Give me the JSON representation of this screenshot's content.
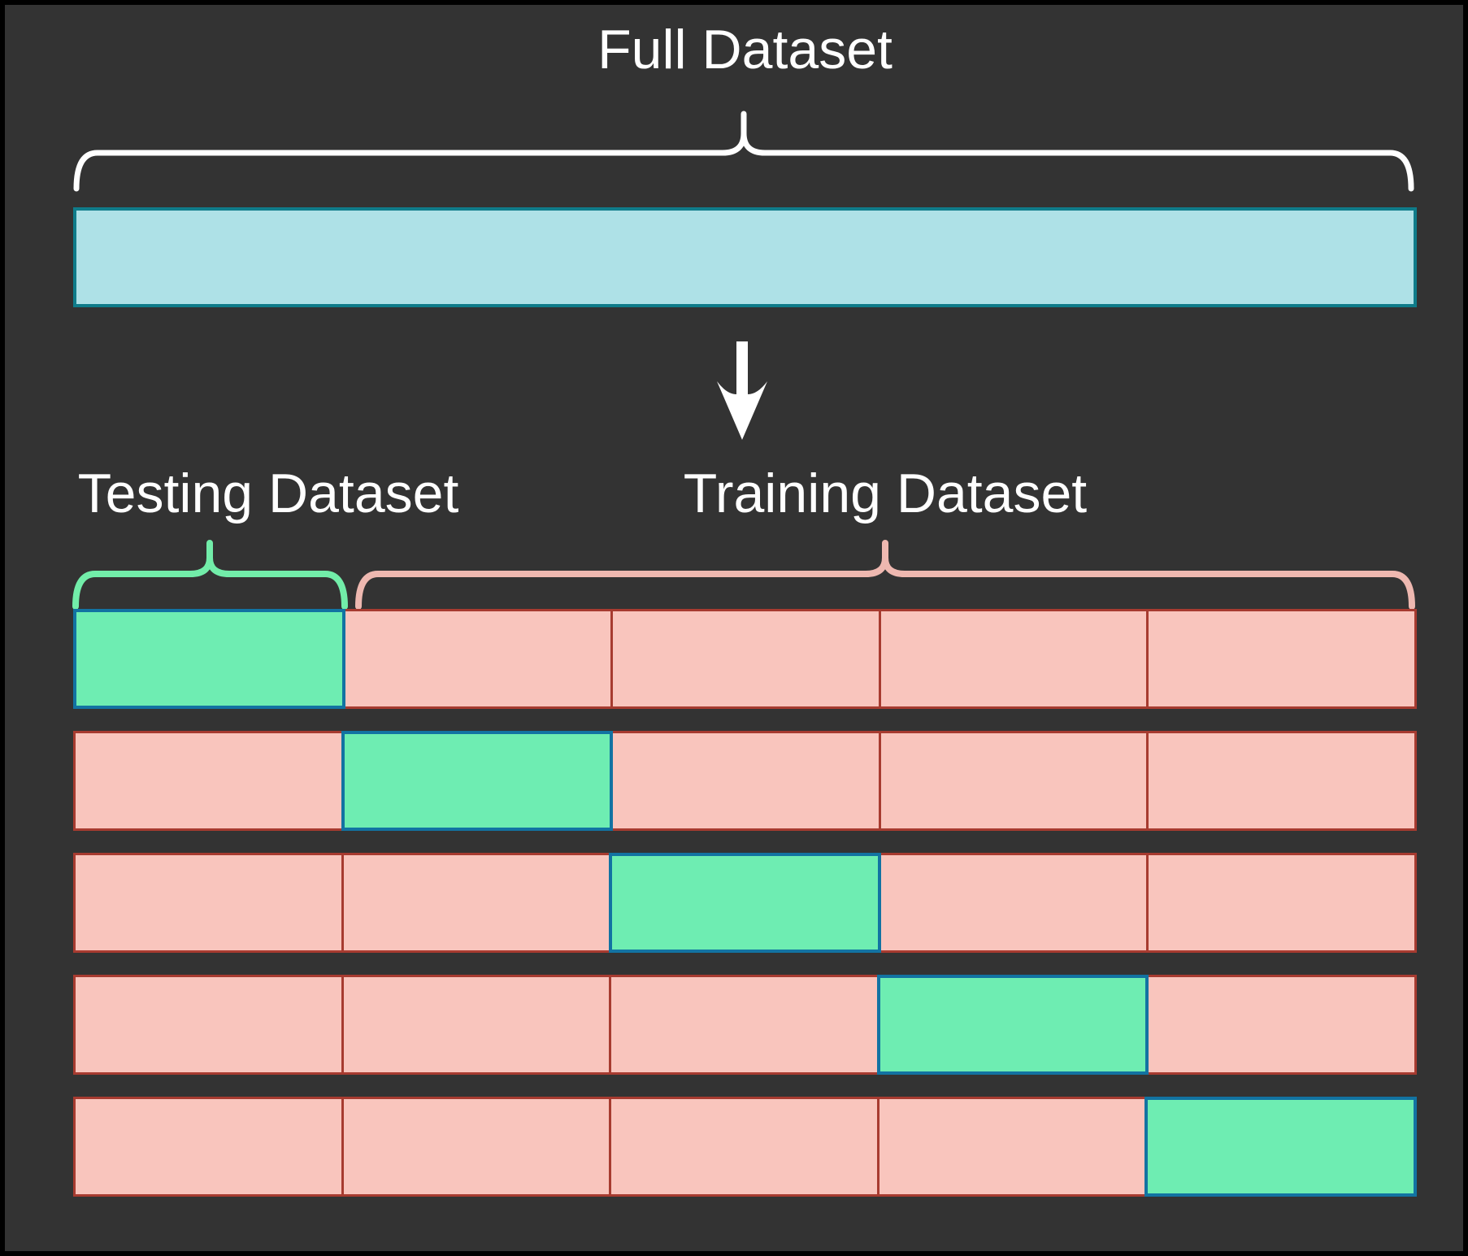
{
  "title": "Full Dataset",
  "sections": {
    "testing_label": "Testing Dataset",
    "training_label": "Training Dataset"
  },
  "colors": {
    "background": "#333333",
    "frame": "#000000",
    "text": "#ffffff",
    "full_bar_fill": "#aee1e7",
    "full_bar_border": "#0f7c8a",
    "full_brace": "#ffffff",
    "arrow": "#ffffff",
    "test_cell_fill": "#6eedb2",
    "test_cell_border": "#1273a2",
    "train_cell_fill": "#f9c5bd",
    "train_cell_border": "#a73b30",
    "test_brace": "#72eda9",
    "train_brace": "#eeb8b0"
  },
  "folds": {
    "count": 5,
    "segments_per_row": 5,
    "rows": [
      {
        "fold": 1,
        "cells": [
          "test",
          "train",
          "train",
          "train",
          "train"
        ]
      },
      {
        "fold": 2,
        "cells": [
          "train",
          "test",
          "train",
          "train",
          "train"
        ]
      },
      {
        "fold": 3,
        "cells": [
          "train",
          "train",
          "test",
          "train",
          "train"
        ]
      },
      {
        "fold": 4,
        "cells": [
          "train",
          "train",
          "train",
          "test",
          "train"
        ]
      },
      {
        "fold": 5,
        "cells": [
          "train",
          "train",
          "train",
          "train",
          "test"
        ]
      }
    ]
  }
}
